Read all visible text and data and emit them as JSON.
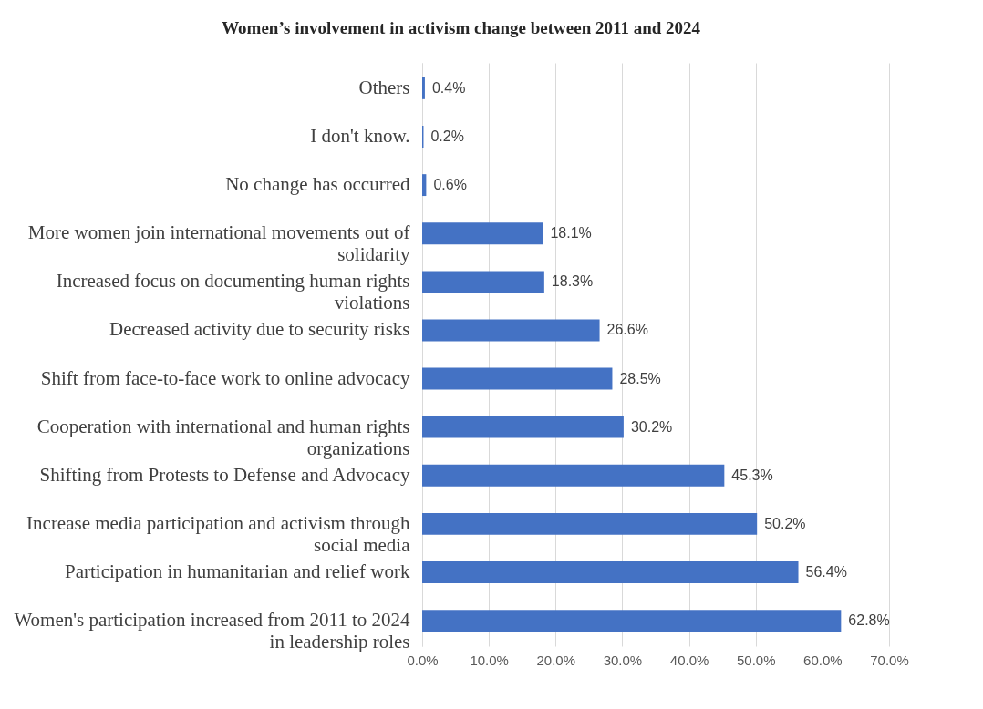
{
  "chart_data": {
    "type": "bar",
    "orientation": "horizontal",
    "title": "Women’s involvement in activism change between 2011 and 2024",
    "categories": [
      "Others",
      "I don't know.",
      "No change has occurred",
      "More women join international movements out of solidarity",
      "Increased focus on documenting human rights violations",
      "Decreased activity due to security risks",
      "Shift from face-to-face work to online advocacy",
      "Cooperation with international and human rights organizations",
      "Shifting from Protests to Defense and Advocacy",
      "Increase media participation and activism through social media",
      "Participation in humanitarian and relief work",
      "Women's participation increased from 2011 to 2024 in leadership roles"
    ],
    "values": [
      0.4,
      0.2,
      0.6,
      18.1,
      18.3,
      26.6,
      28.5,
      30.2,
      45.3,
      50.2,
      56.4,
      62.8
    ],
    "value_labels": [
      "0.4%",
      "0.2%",
      "0.6%",
      "18.1%",
      "18.3%",
      "26.6%",
      "28.5%",
      "30.2%",
      "45.3%",
      "50.2%",
      "56.4%",
      "62.8%"
    ],
    "color": "#4472c4",
    "xlim": [
      0,
      70
    ],
    "xticks": [
      {
        "value": 0,
        "label": "0.0%"
      },
      {
        "value": 10,
        "label": "10.0%"
      },
      {
        "value": 20,
        "label": "20.0%"
      },
      {
        "value": 30,
        "label": "30.0%"
      },
      {
        "value": 40,
        "label": "40.0%"
      },
      {
        "value": 50,
        "label": "50.0%"
      },
      {
        "value": 60,
        "label": "60.0%"
      },
      {
        "value": 70,
        "label": "70.0%"
      }
    ],
    "grid": "x"
  }
}
